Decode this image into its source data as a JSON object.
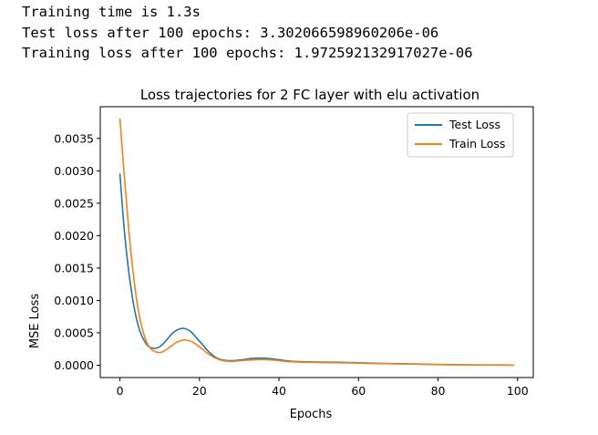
{
  "output_log": [
    "Training time is 1.3s",
    "Test loss after 100 epochs: 3.302066598960206e-06",
    "Training loss after 100 epochs: 1.972592132917027e-06"
  ],
  "chart_data": {
    "type": "line",
    "title": "Loss trajectories for 2 FC layer with elu activation",
    "xlabel": "Epochs",
    "ylabel": "MSE Loss",
    "xlim": [
      -4.95,
      103.95
    ],
    "ylim": [
      -0.00019,
      0.00399
    ],
    "x_ticks": [
      0,
      20,
      40,
      60,
      80,
      100
    ],
    "x_tick_labels": [
      "0",
      "20",
      "40",
      "60",
      "80",
      "100"
    ],
    "y_ticks": [
      0,
      0.0005,
      0.001,
      0.0015,
      0.002,
      0.0025,
      0.003,
      0.0035
    ],
    "y_tick_labels": [
      "0.0000",
      "0.0005",
      "0.0010",
      "0.0015",
      "0.0020",
      "0.0025",
      "0.0030",
      "0.0035"
    ],
    "grid": false,
    "legend_position": "upper right",
    "series": [
      {
        "name": "Test Loss",
        "color": "#1f77b4",
        "x": [
          0,
          1,
          2,
          3,
          4,
          5,
          6,
          7,
          8,
          9,
          10,
          11,
          12,
          13,
          14,
          15,
          16,
          17,
          18,
          19,
          20,
          21,
          22,
          23,
          24,
          25,
          26,
          27,
          28,
          29,
          30,
          32,
          34,
          36,
          38,
          40,
          42,
          45,
          50,
          55,
          60,
          65,
          70,
          75,
          80,
          85,
          90,
          95,
          99
        ],
        "y": [
          0.00295,
          0.00215,
          0.00155,
          0.0011,
          0.00076,
          0.00053,
          0.00039,
          0.0003,
          0.000265,
          0.000262,
          0.000285,
          0.00034,
          0.00041,
          0.00048,
          0.00053,
          0.00056,
          0.00057,
          0.00055,
          0.00051,
          0.00044,
          0.00037,
          0.0003,
          0.00023,
          0.00017,
          0.000125,
          9.5e-05,
          8e-05,
          7.2e-05,
          7e-05,
          7.3e-05,
          8e-05,
          9.5e-05,
          0.000108,
          0.00011,
          0.0001,
          8.5e-05,
          6.8e-05,
          5.5e-05,
          4.8e-05,
          4.5e-05,
          3.8e-05,
          3e-05,
          2.4e-05,
          1.8e-05,
          1.2e-05,
          8e-06,
          5e-06,
          4e-06,
          3.3e-06
        ]
      },
      {
        "name": "Train Loss",
        "color": "#ff7f0e",
        "x": [
          0,
          1,
          2,
          3,
          4,
          5,
          6,
          7,
          8,
          9,
          10,
          11,
          12,
          13,
          14,
          15,
          16,
          17,
          18,
          19,
          20,
          21,
          22,
          23,
          24,
          25,
          26,
          27,
          28,
          29,
          30,
          32,
          34,
          36,
          38,
          40,
          42,
          45,
          50,
          55,
          60,
          65,
          70,
          75,
          80,
          85,
          90,
          95,
          99
        ],
        "y": [
          0.0038,
          0.003,
          0.00225,
          0.0016,
          0.0011,
          0.00072,
          0.00048,
          0.00032,
          0.00024,
          0.000205,
          0.000195,
          0.000215,
          0.000255,
          0.0003,
          0.000345,
          0.000375,
          0.00039,
          0.000385,
          0.000365,
          0.00033,
          0.000285,
          0.000235,
          0.000185,
          0.000145,
          0.00011,
          8.5e-05,
          7e-05,
          6.2e-05,
          6e-05,
          6.3e-05,
          6.8e-05,
          7.8e-05,
          8.6e-05,
          8.8e-05,
          8.2e-05,
          7e-05,
          5.8e-05,
          4.8e-05,
          4.2e-05,
          3.8e-05,
          3.2e-05,
          2.6e-05,
          2e-05,
          1.4e-05,
          9e-06,
          6e-06,
          4e-06,
          3e-06,
          2e-06
        ]
      }
    ]
  }
}
